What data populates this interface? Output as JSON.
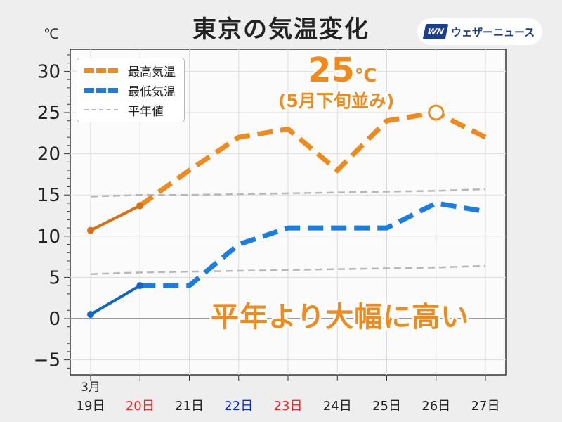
{
  "title": "東京の気温変化",
  "unit": "℃",
  "badge": {
    "logo": "WN",
    "text": "ウェザーニュース"
  },
  "legend": {
    "max": "最高気温",
    "min": "最低気温",
    "normal": "平年値"
  },
  "annotations": {
    "peak_value": "25",
    "peak_unit": "℃",
    "peak_note": "(5月下旬並み)",
    "summary": "平年より大幅に高い"
  },
  "colors": {
    "max": "#f08a1c",
    "max_past": "#d86f10",
    "min": "#1a7de0",
    "min_past": "#0f66c4",
    "normal": "#b8b8b8",
    "sunday": "#0026ff",
    "holiday": "#ff2020"
  },
  "chart_data": {
    "type": "line",
    "month_label": "3月",
    "categories": [
      "19日",
      "20日",
      "21日",
      "22日",
      "23日",
      "24日",
      "25日",
      "26日",
      "27日"
    ],
    "category_colors": [
      "default",
      "holiday",
      "default",
      "sunday",
      "holiday",
      "default",
      "default",
      "default",
      "default"
    ],
    "y_ticks": [
      "30",
      "25",
      "20",
      "15",
      "10",
      "5",
      "0",
      "−5"
    ],
    "ylim": [
      -6.5,
      32.5
    ],
    "series": [
      {
        "name": "最高気温",
        "values": [
          10.7,
          13.7,
          18,
          22,
          23,
          18,
          24,
          25,
          22
        ],
        "observed_until": 1
      },
      {
        "name": "最低気温",
        "values": [
          0.5,
          4,
          4,
          9,
          11,
          11,
          11,
          14,
          13
        ],
        "observed_until": 1
      },
      {
        "name": "平年値(最高)",
        "values": [
          14.8,
          15.0,
          15.0,
          15.1,
          15.2,
          15.3,
          15.4,
          15.5,
          15.7
        ]
      },
      {
        "name": "平年値(最低)",
        "values": [
          5.4,
          5.6,
          5.7,
          5.8,
          5.9,
          6.0,
          6.1,
          6.2,
          6.4
        ]
      }
    ],
    "highlight": {
      "series": "最高気温",
      "index": 7,
      "value": 25
    }
  }
}
